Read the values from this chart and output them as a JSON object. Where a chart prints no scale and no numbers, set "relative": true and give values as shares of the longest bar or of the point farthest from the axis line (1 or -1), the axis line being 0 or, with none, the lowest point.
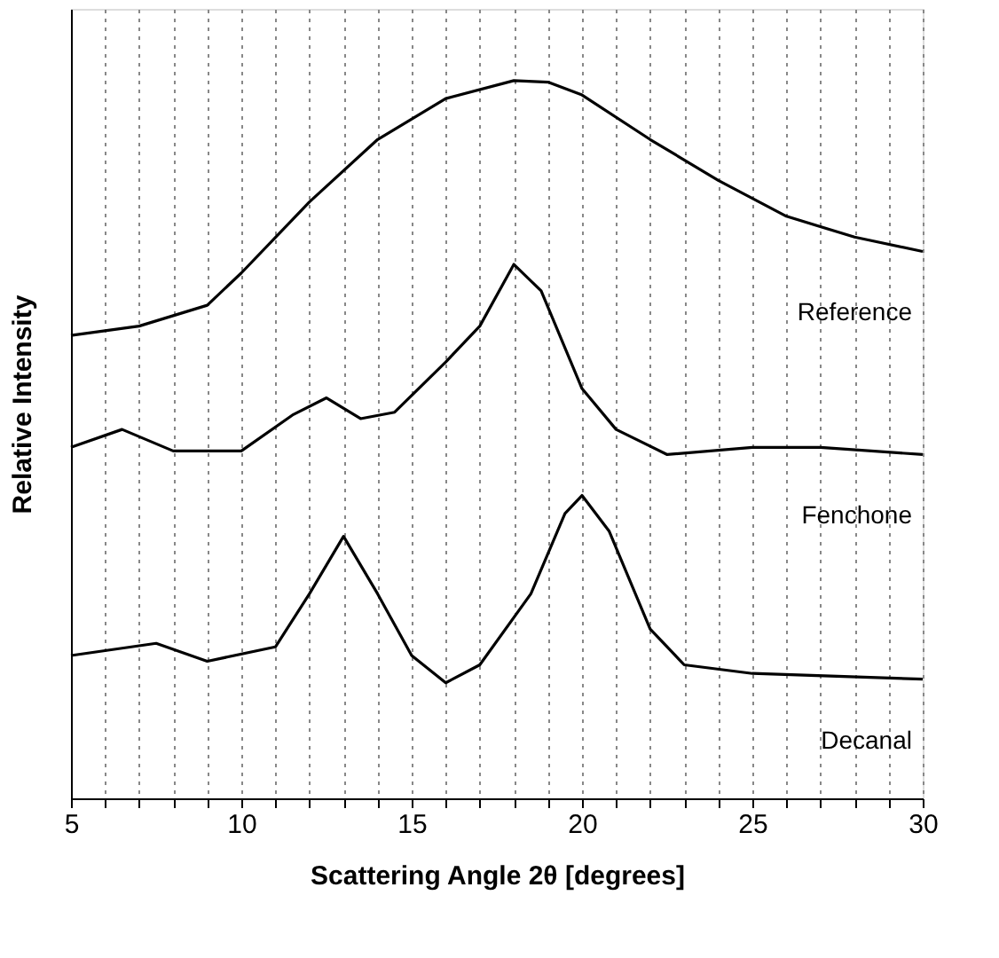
{
  "chart_data": {
    "type": "line",
    "relative": true,
    "xlabel": "Scattering Angle 2θ [degrees]",
    "ylabel": "Relative Intensity",
    "xlim": [
      5,
      30
    ],
    "xticks": [
      5,
      {
        "value": 6,
        "label": null
      },
      {
        "value": 7,
        "label": null
      },
      {
        "value": 8,
        "label": null
      },
      {
        "value": 9,
        "label": null
      },
      10,
      {
        "value": 11,
        "label": null
      },
      {
        "value": 12,
        "label": null
      },
      {
        "value": 13,
        "label": null
      },
      {
        "value": 14,
        "label": null
      },
      15,
      {
        "value": 16,
        "label": null
      },
      {
        "value": 17,
        "label": null
      },
      {
        "value": 18,
        "label": null
      },
      {
        "value": 19,
        "label": null
      },
      20,
      {
        "value": 21,
        "label": null
      },
      {
        "value": 22,
        "label": null
      },
      {
        "value": 23,
        "label": null
      },
      {
        "value": 24,
        "label": null
      },
      25,
      {
        "value": 26,
        "label": null
      },
      {
        "value": 27,
        "label": null
      },
      {
        "value": 28,
        "label": null
      },
      {
        "value": 29,
        "label": null
      },
      30
    ],
    "grid": "x",
    "legend": false,
    "marker": "none",
    "line_style": "solid",
    "series": [
      {
        "name": "Reference",
        "color": "#000000",
        "x": [
          5,
          7,
          9,
          10,
          12,
          14,
          16,
          18,
          19,
          20,
          22,
          24,
          26,
          28,
          30
        ],
        "values": [
          0.645,
          0.658,
          0.687,
          0.732,
          0.831,
          0.918,
          0.975,
          1.0,
          0.998,
          0.98,
          0.918,
          0.861,
          0.811,
          0.782,
          0.762
        ]
      },
      {
        "name": "Fenchone",
        "color": "#000000",
        "x": [
          5,
          6.5,
          8,
          10,
          11.5,
          12.5,
          13.5,
          14.5,
          16,
          17,
          18,
          18.8,
          20,
          21,
          22.5,
          25,
          27,
          30
        ],
        "values": [
          0.489,
          0.514,
          0.484,
          0.484,
          0.534,
          0.558,
          0.529,
          0.538,
          0.608,
          0.658,
          0.744,
          0.707,
          0.571,
          0.514,
          0.479,
          0.489,
          0.489,
          0.479
        ]
      },
      {
        "name": "Decanal",
        "color": "#000000",
        "x": [
          5,
          7.5,
          9,
          11,
          12,
          13,
          14,
          15,
          16,
          17,
          18.5,
          19.5,
          20,
          20.8,
          22,
          23,
          25,
          30
        ],
        "values": [
          0.199,
          0.216,
          0.191,
          0.211,
          0.285,
          0.365,
          0.285,
          0.199,
          0.161,
          0.186,
          0.285,
          0.397,
          0.422,
          0.372,
          0.236,
          0.186,
          0.174,
          0.166
        ]
      }
    ]
  }
}
